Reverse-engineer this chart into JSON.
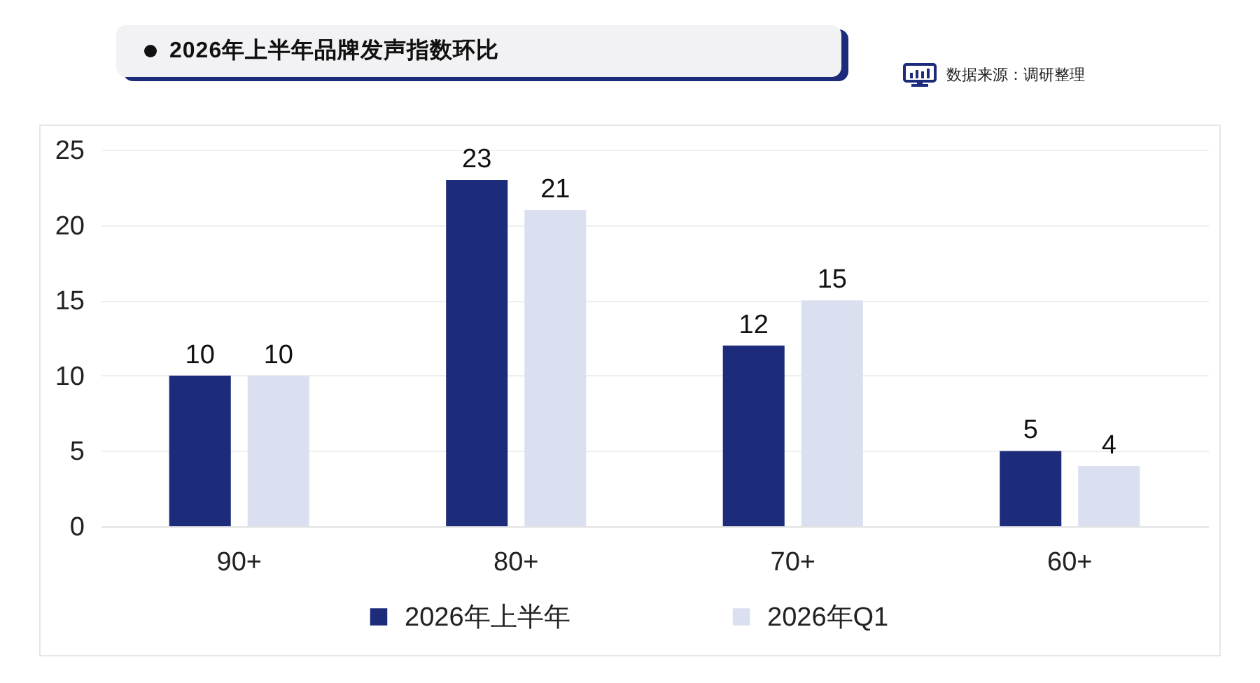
{
  "chart_data": {
    "type": "bar",
    "title": "2026年上半年品牌发声指数环比",
    "annotations": [
      "数据来源：调研整理"
    ],
    "categories": [
      "90+",
      "80+",
      "70+",
      "60+"
    ],
    "series": [
      {
        "name": "2026年上半年",
        "color": "#1c2b7a",
        "values": [
          10,
          23,
          12,
          5
        ]
      },
      {
        "name": "2026年Q1",
        "color": "#dbe0f1",
        "values": [
          10,
          21,
          15,
          4
        ]
      }
    ],
    "ylim": [
      0,
      25
    ],
    "yticks": [
      0,
      5,
      10,
      15,
      20,
      25
    ],
    "grid": "y",
    "legend": "bottom",
    "data_labels": true
  }
}
